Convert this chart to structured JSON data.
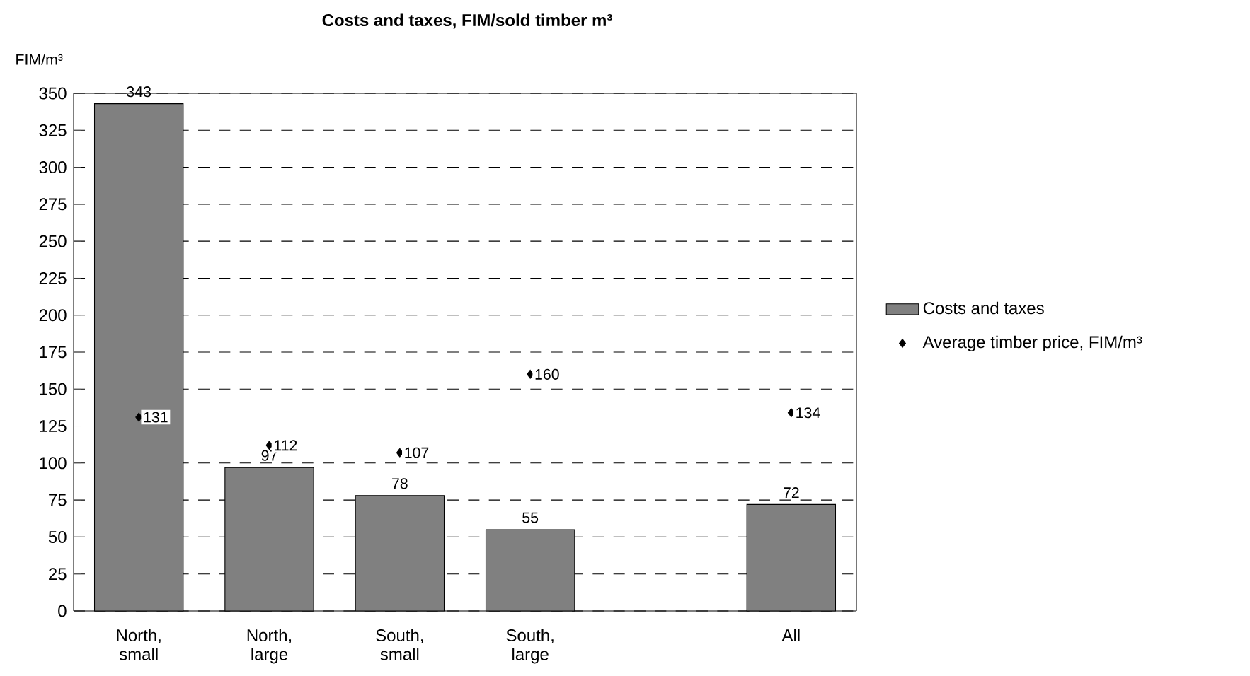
{
  "chart_data": {
    "type": "bar",
    "title": "Costs and taxes, FIM/sold timber m³",
    "ylabel": "FIM/m³",
    "categories": [
      "North, small",
      "North, large",
      "South, small",
      "South, large",
      null,
      "All"
    ],
    "series": [
      {
        "name": "Costs and taxes",
        "color": "#808080",
        "values": [
          343,
          97,
          78,
          55,
          null,
          72
        ]
      },
      {
        "name": "Average timber price, FIM/m³",
        "type": "scatter",
        "color": "#000000",
        "marker": "diamond",
        "values": [
          131,
          112,
          107,
          160,
          null,
          134
        ]
      }
    ],
    "ylim": [
      0,
      350
    ],
    "yticks": [
      0,
      25,
      50,
      75,
      100,
      125,
      150,
      175,
      200,
      225,
      250,
      275,
      300,
      325,
      350
    ],
    "grid": "y",
    "legend": "right",
    "data_labels": true
  }
}
